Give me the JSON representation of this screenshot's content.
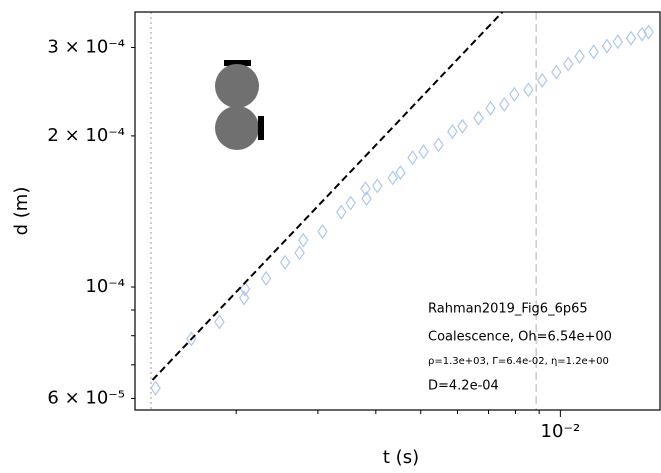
{
  "chart_data": {
    "type": "scatter",
    "xlabel": "t (s)",
    "ylabel": "d (m)",
    "xscale": "log",
    "yscale": "log",
    "xlim": [
      0.00121,
      0.0164
    ],
    "ylim": [
      5.69e-05,
      0.000353
    ],
    "xticks": [
      {
        "value": 0.01,
        "label": "10⁻²"
      }
    ],
    "xminorticks": [
      0.002,
      0.003,
      0.004,
      0.005,
      0.006,
      0.007,
      0.008,
      0.009
    ],
    "yticks": [
      {
        "value": 6e-05,
        "label": "6 × 10⁻⁵"
      },
      {
        "value": 0.0001,
        "label": "10⁻⁴"
      },
      {
        "value": 0.0002,
        "label": "2 × 10⁻⁴"
      },
      {
        "value": 0.0003,
        "label": "3 × 10⁻⁴"
      }
    ],
    "yminorticks": [
      7e-05,
      8e-05,
      9e-05
    ],
    "series": [
      {
        "type": "scatter",
        "marker": "diamond",
        "color": "#aec7f0",
        "x": [
          0.00134,
          0.0016,
          0.00184,
          0.00208,
          0.00209,
          0.00232,
          0.00255,
          0.00274,
          0.00279,
          0.00307,
          0.00337,
          0.00353,
          0.0038,
          0.00382,
          0.00403,
          0.00435,
          0.00452,
          0.0048,
          0.00507,
          0.00546,
          0.00585,
          0.00615,
          0.00666,
          0.00707,
          0.00757,
          0.00796,
          0.00853,
          0.00914,
          0.0098,
          0.0104,
          0.011,
          0.0118,
          0.0126,
          0.0133,
          0.0142,
          0.015,
          0.0155
        ],
        "values": [
          6.29e-05,
          7.88e-05,
          8.52e-05,
          9.51e-05,
          9.91e-05,
          0.000104,
          0.000112,
          0.000117,
          0.000124,
          0.000129,
          0.000141,
          0.000147,
          0.000157,
          0.00015,
          0.000159,
          0.000165,
          0.000169,
          0.000181,
          0.000186,
          0.000192,
          0.000204,
          0.000209,
          0.000217,
          0.000227,
          0.000231,
          0.000242,
          0.000247,
          0.000258,
          0.000268,
          0.000278,
          0.000288,
          0.000294,
          0.000302,
          0.000308,
          0.000313,
          0.000319,
          0.000322
        ]
      },
      {
        "type": "line",
        "dash": "dashed",
        "color": "#000000",
        "x": [
          0.00132,
          0.0075
        ],
        "values": [
          6.53e-05,
          0.000353
        ]
      }
    ],
    "vlines": [
      {
        "x": 0.00131,
        "style": "dotted",
        "color": "#bbbbbb"
      },
      {
        "x": 0.00887,
        "style": "dashed",
        "color": "#cccccc"
      }
    ],
    "annotations": [
      "Rahman2019_Fig6_6p65",
      "Coalescence, Oh=6.54e+00",
      "ρ=1.3e+03, Γ=6.4e-02, η=1.2e+00",
      "D=4.2e-04"
    ]
  }
}
